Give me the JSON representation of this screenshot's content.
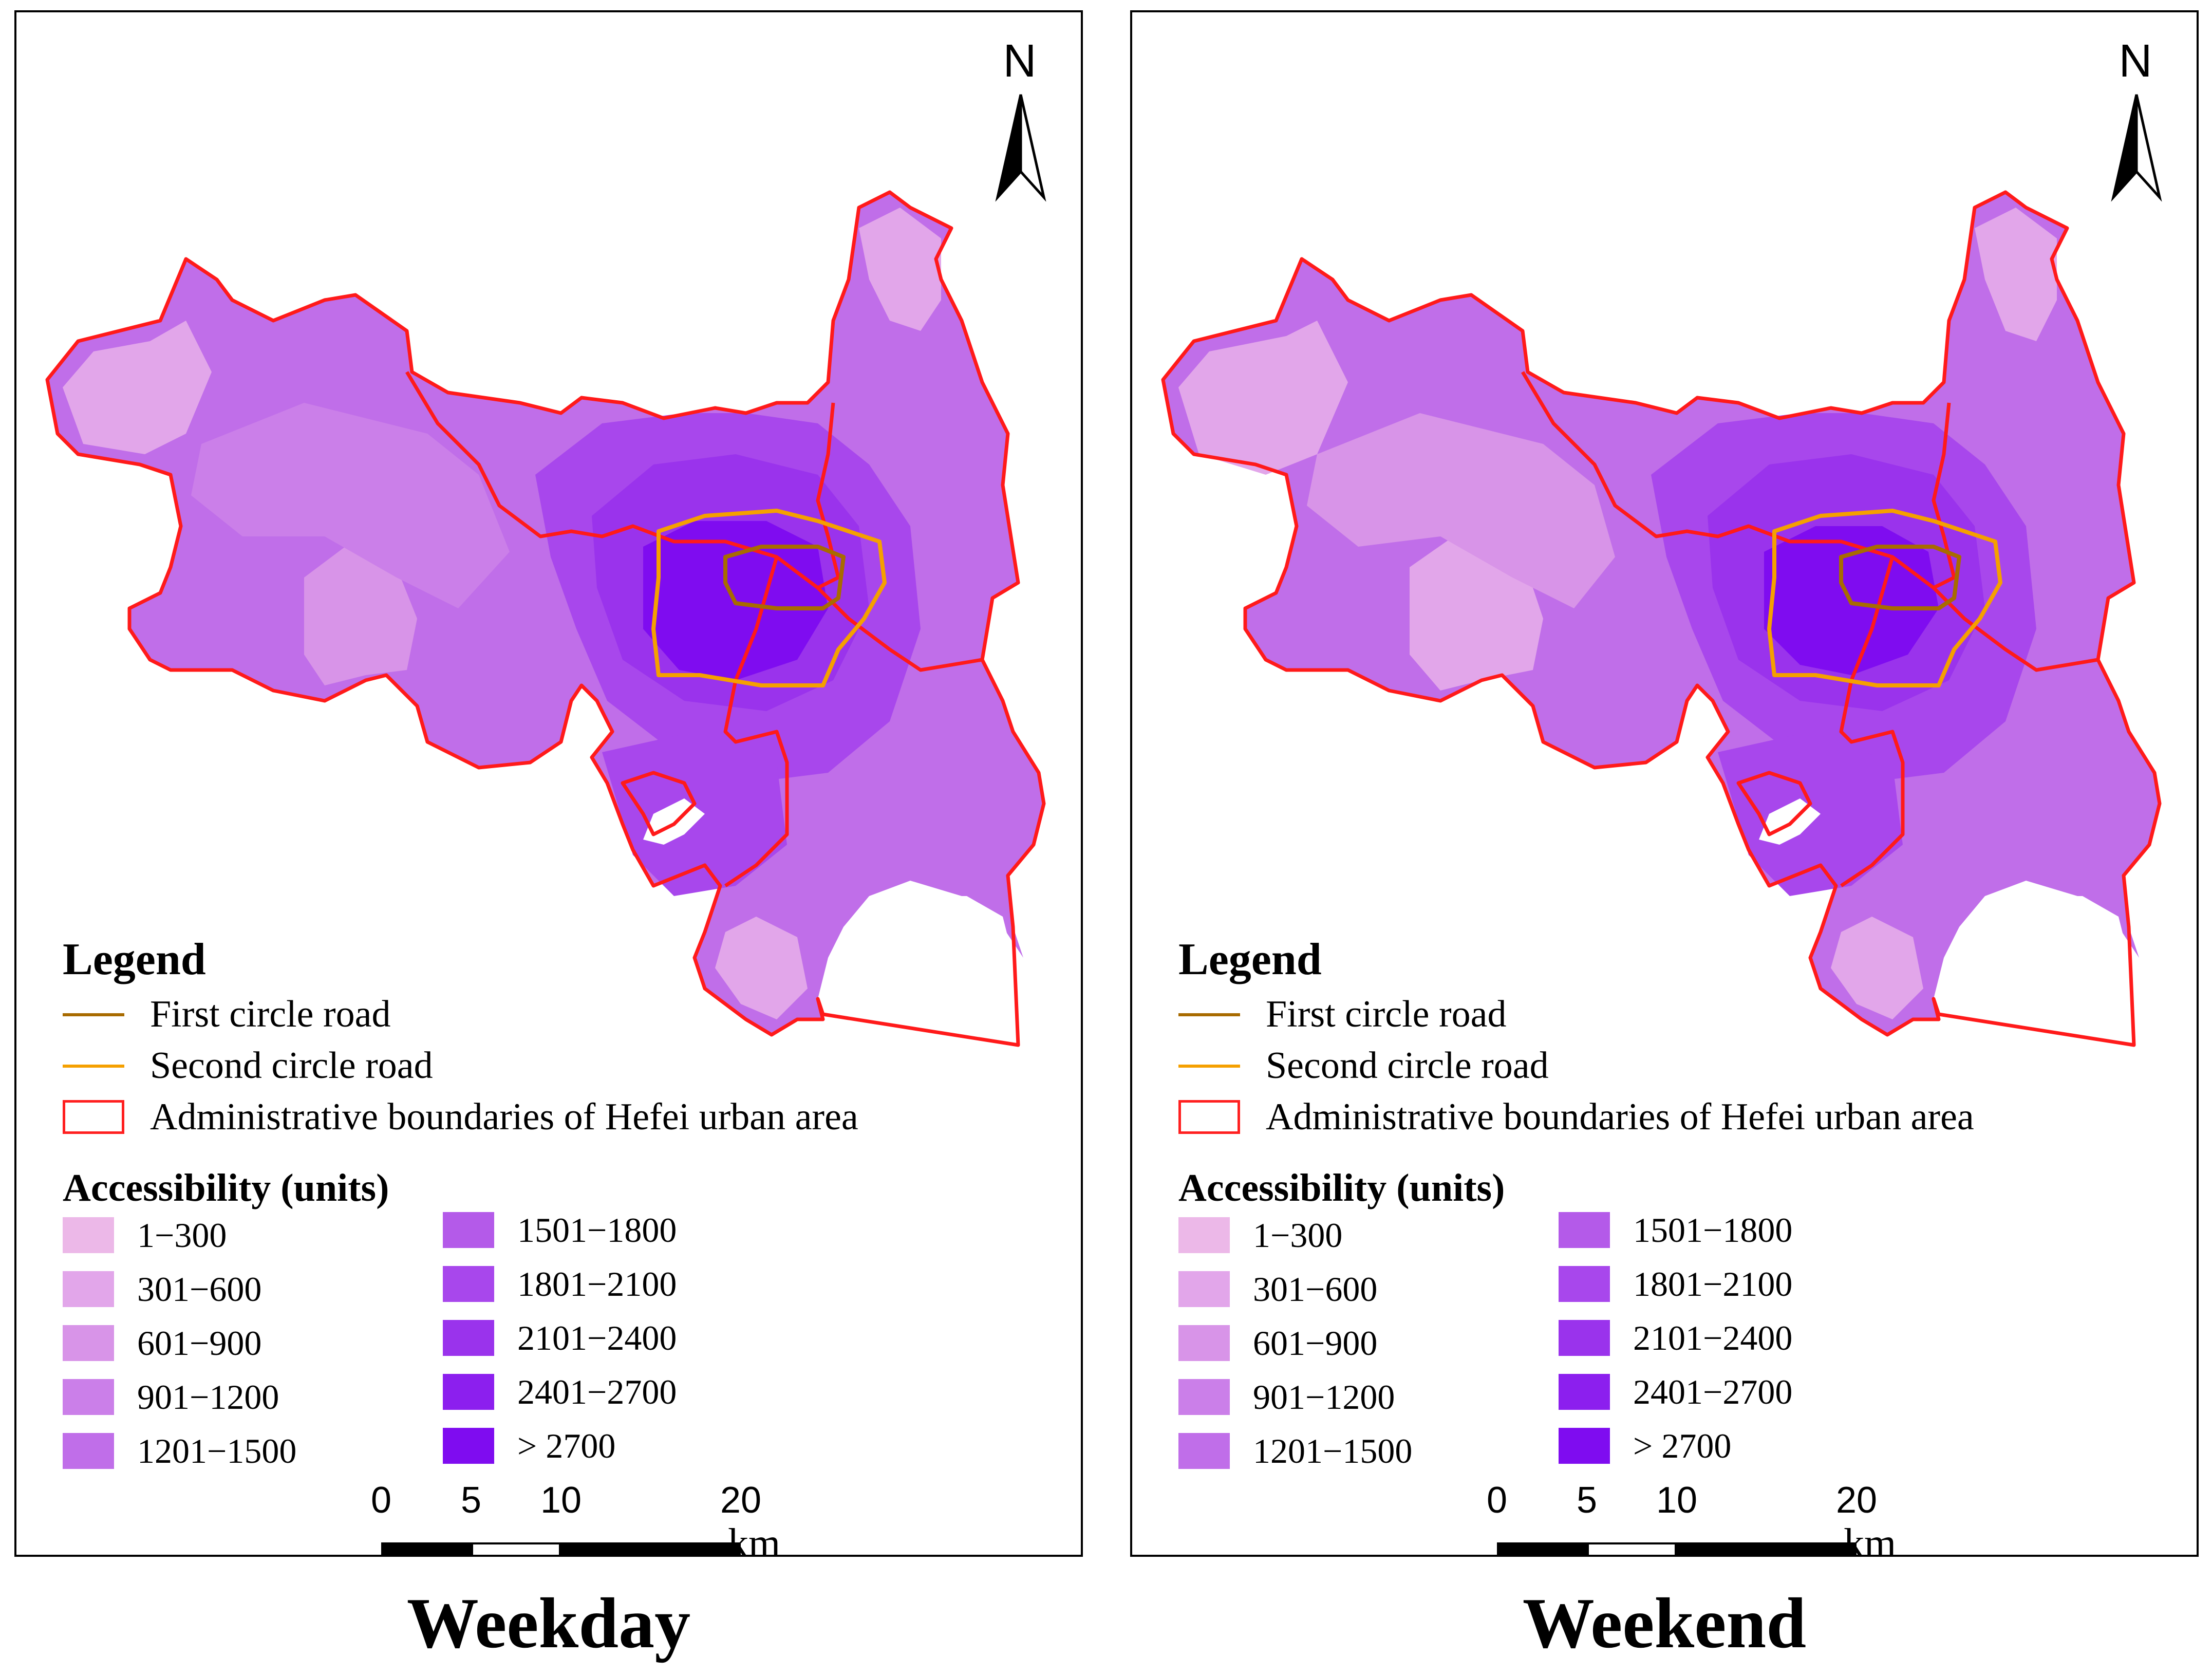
{
  "north_label": "N",
  "legend": {
    "title": "Legend",
    "first_circle_road": "First circle road",
    "second_circle_road": "Second circle road",
    "admin_boundary": "Administrative boundaries of Hefei urban area",
    "accessibility_title": "Accessibility (units)",
    "classes": [
      {
        "label": "1−300",
        "color": "#ecb8e8"
      },
      {
        "label": "301−600",
        "color": "#e2a6ea"
      },
      {
        "label": "601−900",
        "color": "#d894e8"
      },
      {
        "label": "901−1200",
        "color": "#cb7fe9"
      },
      {
        "label": "1201−1500",
        "color": "#c06ee9"
      },
      {
        "label": "1501−1800",
        "color": "#b45ae9"
      },
      {
        "label": "1801−2100",
        "color": "#a847ec"
      },
      {
        "label": "2101−2400",
        "color": "#9a33ec"
      },
      {
        "label": "2401−2700",
        "color": "#8c1fee"
      },
      {
        "label": "> 2700",
        "color": "#7f0cf0"
      }
    ]
  },
  "colors": {
    "first_road": "#a86b00",
    "second_road": "#f5a000",
    "boundary": "#ff1a1a"
  },
  "scale_bar": {
    "ticks": [
      "0",
      "5",
      "10",
      "20"
    ],
    "unit": "km"
  },
  "panels": [
    {
      "caption": "Weekday"
    },
    {
      "caption": "Weekend"
    }
  ]
}
